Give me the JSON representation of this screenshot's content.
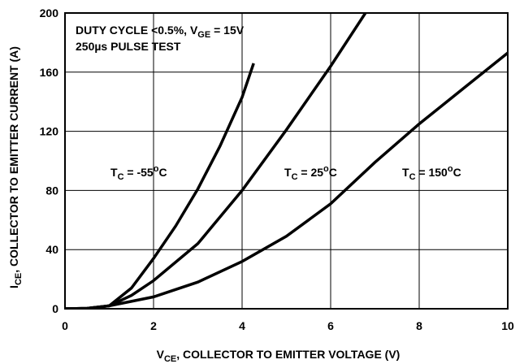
{
  "chart_data": {
    "type": "line",
    "annotations": [
      {
        "parts": [
          {
            "text": "DUTY CYCLE <0.5%, V"
          },
          {
            "text": "GE",
            "shift": "sub"
          },
          {
            "text": " = 15V"
          }
        ]
      },
      {
        "parts": [
          {
            "text": "250µs PULSE TEST"
          }
        ]
      }
    ],
    "x_label": [
      {
        "text": "V"
      },
      {
        "text": "CE",
        "shift": "sub"
      },
      {
        "text": ", COLLECTOR TO EMITTER VOLTAGE (V)"
      }
    ],
    "y_label": [
      {
        "text": "I"
      },
      {
        "text": "CE",
        "shift": "sub"
      },
      {
        "text": ", COLLECTOR TO EMITTER CURRENT (A)"
      }
    ],
    "xlim": [
      0,
      10
    ],
    "xticks": [
      0,
      2,
      4,
      6,
      8,
      10
    ],
    "ylim": [
      0,
      200
    ],
    "yticks": [
      0,
      40,
      80,
      120,
      160,
      200
    ],
    "grid": true,
    "color": "#000000",
    "series": [
      {
        "label": [
          {
            "text": "T"
          },
          {
            "text": "C",
            "shift": "sub"
          },
          {
            "text": " = -55"
          },
          {
            "text": "o",
            "shift": "sup"
          },
          {
            "text": "C"
          }
        ],
        "x": [
          0,
          0.5,
          1,
          1.5,
          2,
          2.5,
          3,
          3.5,
          4,
          4.26
        ],
        "values": [
          0,
          0.3,
          2,
          14,
          34,
          56,
          81,
          110,
          143,
          166
        ]
      },
      {
        "label": [
          {
            "text": "T"
          },
          {
            "text": "C",
            "shift": "sub"
          },
          {
            "text": " = 25"
          },
          {
            "text": "o",
            "shift": "sup"
          },
          {
            "text": "C"
          }
        ],
        "x": [
          0,
          0.5,
          1,
          1.5,
          2,
          3,
          4,
          5,
          6,
          6.83
        ],
        "values": [
          0,
          0.3,
          2,
          9,
          19,
          44,
          80,
          121,
          164,
          202
        ]
      },
      {
        "label": [
          {
            "text": "T"
          },
          {
            "text": "C",
            "shift": "sub"
          },
          {
            "text": " = 150"
          },
          {
            "text": "o",
            "shift": "sup"
          },
          {
            "text": "C"
          }
        ],
        "x": [
          0,
          0.5,
          1,
          2,
          3,
          4,
          5,
          6,
          7,
          8,
          9,
          10
        ],
        "values": [
          0,
          0.3,
          2,
          8,
          18,
          32,
          49,
          71,
          99,
          125,
          149,
          173
        ]
      }
    ]
  }
}
